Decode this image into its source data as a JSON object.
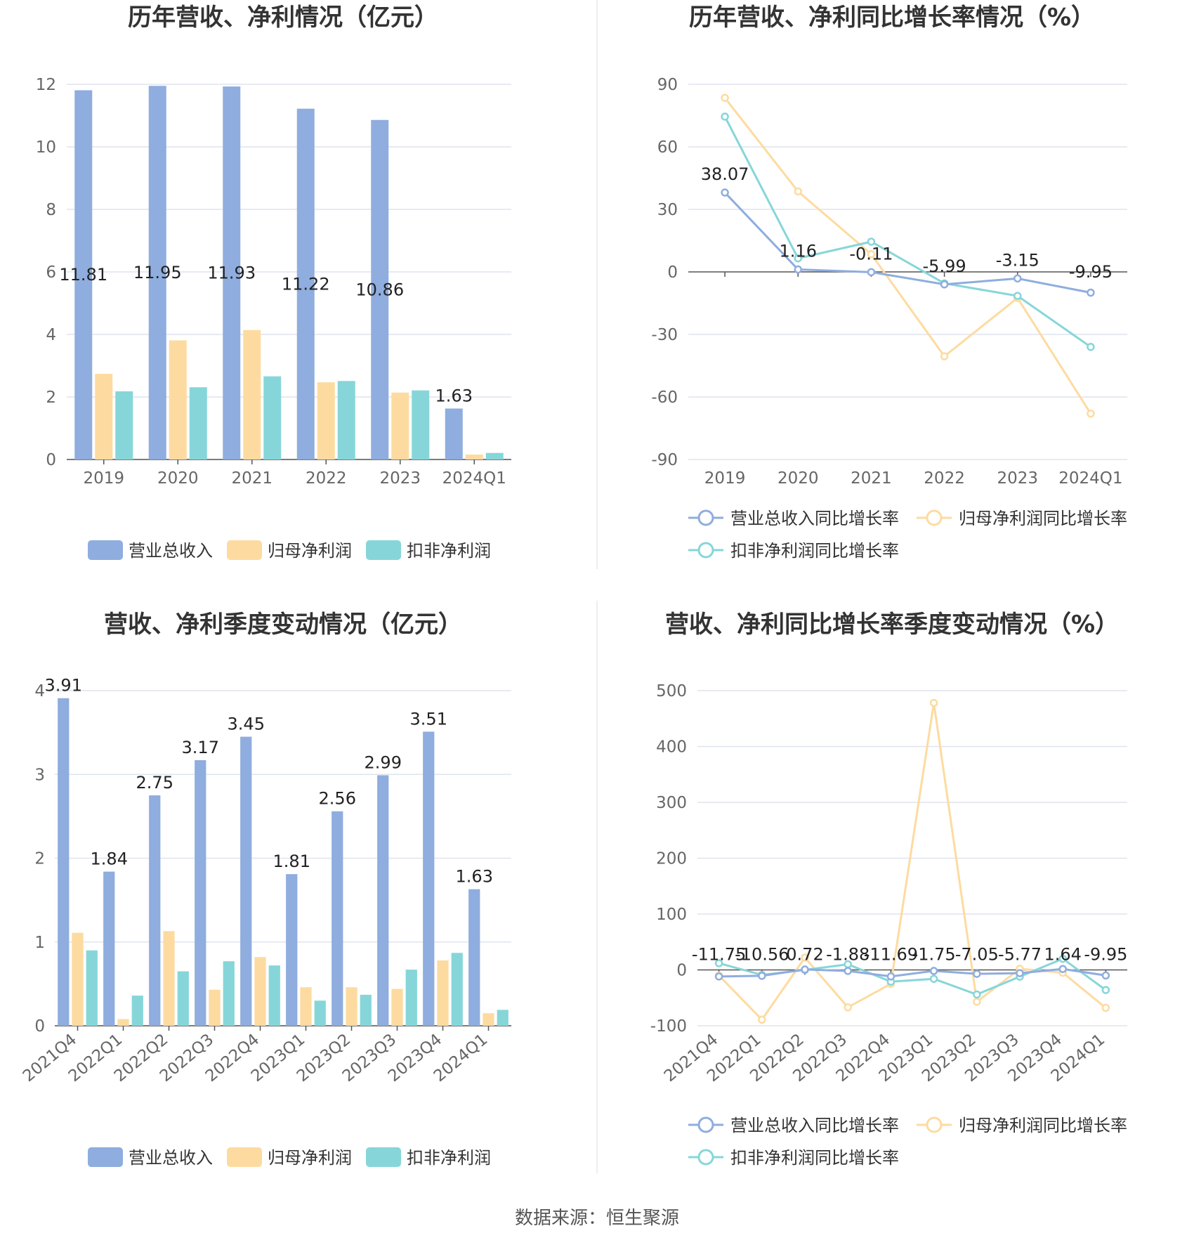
{
  "colors": {
    "revenue": "#8fadde",
    "net_profit": "#fddba0",
    "deducted_profit": "#86d6d9",
    "grid": "#dfe4ee",
    "axis": "#555555"
  },
  "legend": {
    "bar": [
      "营业总收入",
      "归母净利润",
      "扣非净利润"
    ],
    "line": [
      "营业总收入同比增长率",
      "归母净利润同比增长率",
      "扣非净利润同比增长率"
    ]
  },
  "source": "数据来源：恒生聚源",
  "chart_data": [
    {
      "id": "annual-amounts",
      "type": "bar",
      "title": "历年营收、净利情况（亿元）",
      "categories": [
        "2019",
        "2020",
        "2021",
        "2022",
        "2023",
        "2024Q1"
      ],
      "series": [
        {
          "name": "营业总收入",
          "values": [
            11.81,
            11.95,
            11.93,
            11.22,
            10.86,
            1.63
          ]
        },
        {
          "name": "归母净利润",
          "values": [
            2.74,
            3.81,
            4.14,
            2.47,
            2.14,
            0.16
          ]
        },
        {
          "name": "扣非净利润",
          "values": [
            2.18,
            2.31,
            2.66,
            2.51,
            2.21,
            0.21
          ]
        }
      ],
      "data_labels": [
        "11.81",
        "11.95",
        "11.93",
        "11.22",
        "10.86",
        "1.63"
      ],
      "yticks": [
        "0",
        "2",
        "4",
        "6",
        "8",
        "10",
        "12"
      ],
      "ylim": [
        0,
        12
      ],
      "grid": true,
      "legend_position": "bottom"
    },
    {
      "id": "annual-growth",
      "type": "line",
      "title": "历年营收、净利同比增长率情况（%）",
      "categories": [
        "2019",
        "2020",
        "2021",
        "2022",
        "2023",
        "2024Q1"
      ],
      "series": [
        {
          "name": "营业总收入同比增长率",
          "values": [
            38.07,
            1.16,
            -0.11,
            -5.99,
            -3.15,
            -9.95
          ]
        },
        {
          "name": "归母净利润同比增长率",
          "values": [
            83.5,
            38.6,
            8.5,
            -40.5,
            -12.5,
            -68
          ]
        },
        {
          "name": "扣非净利润同比增长率",
          "values": [
            74.5,
            6.5,
            14.5,
            -5.5,
            -11.5,
            -36
          ]
        }
      ],
      "data_labels": [
        "38.07",
        "1.16",
        "-0.11",
        "-5.99",
        "-3.15",
        "-9.95"
      ],
      "yticks": [
        "-90",
        "-60",
        "-30",
        "0",
        "30",
        "60",
        "90"
      ],
      "ylim": [
        -90,
        90
      ],
      "grid": true,
      "legend_position": "bottom"
    },
    {
      "id": "quarterly-amounts",
      "type": "bar",
      "title": "营收、净利季度变动情况（亿元）",
      "categories": [
        "2021Q4",
        "2022Q1",
        "2022Q2",
        "2022Q3",
        "2022Q4",
        "2023Q1",
        "2023Q2",
        "2023Q3",
        "2023Q4",
        "2024Q1"
      ],
      "series": [
        {
          "name": "营业总收入",
          "values": [
            3.91,
            1.84,
            2.75,
            3.17,
            3.45,
            1.81,
            2.56,
            2.99,
            3.51,
            1.63
          ]
        },
        {
          "name": "归母净利润",
          "values": [
            1.11,
            0.08,
            1.13,
            0.43,
            0.82,
            0.46,
            0.46,
            0.44,
            0.78,
            0.15
          ]
        },
        {
          "name": "扣非净利润",
          "values": [
            0.9,
            0.36,
            0.65,
            0.77,
            0.72,
            0.3,
            0.37,
            0.67,
            0.87,
            0.19
          ]
        }
      ],
      "data_labels": [
        "3.91",
        "1.84",
        "2.75",
        "3.17",
        "3.45",
        "1.81",
        "2.56",
        "2.99",
        "3.51",
        "1.63"
      ],
      "yticks": [
        "0",
        "1",
        "2",
        "3",
        "4"
      ],
      "ylim": [
        0,
        4
      ],
      "grid": true,
      "legend_position": "bottom"
    },
    {
      "id": "quarterly-growth",
      "type": "line",
      "title": "营收、净利同比增长率季度变动情况（%）",
      "categories": [
        "2021Q4",
        "2022Q1",
        "2022Q2",
        "2022Q3",
        "2022Q4",
        "2023Q1",
        "2023Q2",
        "2023Q3",
        "2023Q4",
        "2024Q1"
      ],
      "series": [
        {
          "name": "营业总收入同比增长率",
          "values": [
            -11.75,
            -10.56,
            0.72,
            -1.88,
            -11.69,
            -1.75,
            -7.05,
            -5.77,
            1.64,
            -9.95
          ]
        },
        {
          "name": "归母净利润同比增长率",
          "values": [
            -10,
            -89,
            22,
            -67,
            -25,
            478,
            -57,
            2,
            -5,
            -68
          ]
        },
        {
          "name": "扣非净利润同比增长率",
          "values": [
            12,
            -9,
            0,
            10,
            -21,
            -16,
            -44,
            -12,
            20,
            -36
          ]
        }
      ],
      "data_labels": [
        "-11.75",
        "-10.56",
        "0.72",
        "-1.88",
        "-11.69",
        "-1.75",
        "-7.05",
        "-5.77",
        "1.64",
        "-9.95"
      ],
      "yticks": [
        "-100",
        "0",
        "100",
        "200",
        "300",
        "400",
        "500"
      ],
      "ylim": [
        -100,
        500
      ],
      "grid": true,
      "legend_position": "bottom"
    }
  ]
}
